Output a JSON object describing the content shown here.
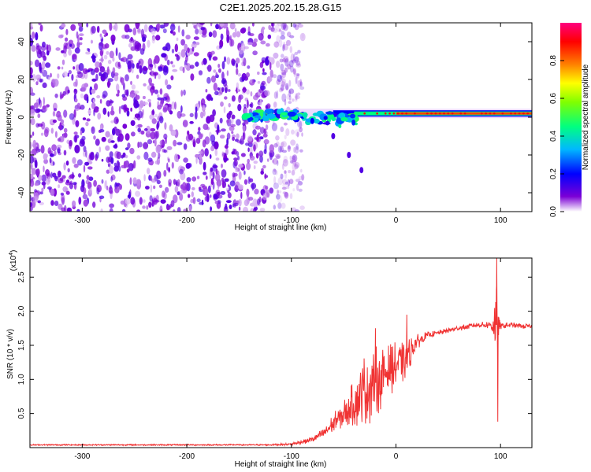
{
  "title": "C2E1.2025.202.15.28.G15",
  "chart_data": [
    {
      "type": "heatmap",
      "xlabel": "Height of straight line (km)",
      "ylabel": "Frequency (Hz)",
      "xlim": [
        -350,
        130
      ],
      "ylim": [
        -50,
        50
      ],
      "xticks": [
        -300,
        -200,
        -100,
        0,
        100
      ],
      "yticks": [
        -40,
        -20,
        0,
        20,
        40
      ],
      "colorbar": {
        "label": "Normalized spectral amplitude",
        "range": [
          0.0,
          1.0
        ],
        "ticks": [
          "0.0",
          "0.2",
          "0.4",
          "0.6",
          "0.8"
        ],
        "colors": [
          "#ffffff",
          "#7b00d6",
          "#0000ff",
          "#00b8ff",
          "#00ff80",
          "#80ff00",
          "#ffff00",
          "#ff8000",
          "#ff0000",
          "#ff007f"
        ]
      },
      "features": {
        "noise_band_x": [
          -350,
          -95
        ],
        "signal_line_freq_hz": 2,
        "signal_start_km": -145,
        "signal_peak_amplitude": 0.9,
        "drift_trace": [
          [
            -80,
            -2
          ],
          [
            -60,
            -10
          ],
          [
            -45,
            -20
          ],
          [
            -33,
            -28
          ]
        ]
      }
    },
    {
      "type": "line",
      "xlabel": "Height of straight line (km)",
      "ylabel": "SNR (10 * v/v)",
      "yscale_label": "(x10",
      "yscale_exp": "4",
      "xlim": [
        -350,
        130
      ],
      "ylim": [
        0,
        2.78
      ],
      "xticks": [
        -300,
        -200,
        -100,
        0,
        100
      ],
      "yticks": [
        "0.5",
        "1.0",
        "1.5",
        "2.0",
        "2.5"
      ],
      "ytick_values": [
        0.5,
        1.0,
        1.5,
        2.0,
        2.5
      ],
      "color": "#f03333",
      "x": [
        -350,
        -300,
        -200,
        -120,
        -100,
        -80,
        -70,
        -60,
        -50,
        -40,
        -30,
        -20,
        -10,
        0,
        10,
        20,
        30,
        40,
        50,
        60,
        70,
        80,
        90,
        94,
        96,
        98,
        100,
        110,
        120,
        130
      ],
      "y": [
        0.04,
        0.04,
        0.04,
        0.04,
        0.05,
        0.12,
        0.2,
        0.35,
        0.5,
        0.65,
        0.85,
        0.95,
        1.1,
        1.2,
        1.3,
        1.55,
        1.65,
        1.68,
        1.72,
        1.75,
        1.78,
        1.8,
        1.8,
        1.8,
        1.8,
        1.75,
        1.78,
        1.8,
        1.78,
        1.78
      ],
      "noise_amplitude": [
        0.01,
        0.01,
        0.01,
        0.01,
        0.02,
        0.05,
        0.08,
        0.15,
        0.2,
        0.35,
        0.55,
        0.55,
        0.4,
        0.35,
        0.3,
        0.12,
        0.05,
        0.04,
        0.04,
        0.04,
        0.04,
        0.04,
        0.06,
        0.3,
        0.9,
        0.2,
        0.05,
        0.04,
        0.04,
        0.04
      ],
      "spikes": [
        [
          -20,
          1.75
        ],
        [
          10,
          1.95
        ],
        [
          96,
          2.78
        ],
        [
          97,
          0.38
        ]
      ]
    }
  ]
}
